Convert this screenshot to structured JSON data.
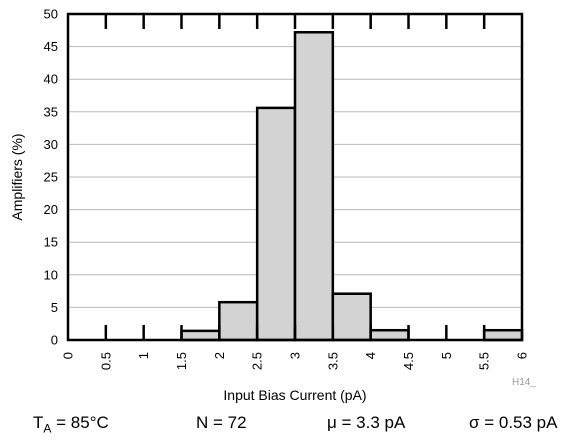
{
  "chart_data": {
    "type": "bar",
    "bin_edges": [
      0,
      0.5,
      1,
      1.5,
      2,
      2.5,
      3,
      3.5,
      4,
      4.5,
      5,
      5.5,
      6
    ],
    "categories": [
      "0-0.5",
      "0.5-1",
      "1-1.5",
      "1.5-2",
      "2-2.5",
      "2.5-3",
      "3-3.5",
      "3.5-4",
      "4-4.5",
      "4.5-5",
      "5-5.5",
      "5.5-6"
    ],
    "values": [
      0,
      0,
      0,
      1.4,
      5.8,
      35.6,
      47.2,
      7.1,
      1.5,
      0,
      0,
      1.5
    ],
    "xlabel": "Input Bias Current (pA)",
    "ylabel": "Amplifiers (%)",
    "x_tick_labels": [
      "0",
      "0.5",
      "1",
      "1.5",
      "2",
      "2.5",
      "3",
      "3.5",
      "4",
      "4.5",
      "5",
      "5.5",
      "6"
    ],
    "y_tick_labels": [
      "0",
      "5",
      "10",
      "15",
      "20",
      "25",
      "30",
      "35",
      "40",
      "45",
      "50"
    ],
    "xlim": [
      0,
      6
    ],
    "ylim": [
      0,
      50
    ],
    "grid": "horizontal",
    "bar_color": "#d3d3d3",
    "edge_color": "#000000"
  },
  "figure_code": "H14_",
  "footer": {
    "temp_label": "T",
    "temp_sub": "A",
    "temp_value": " = 85°C",
    "n": "N = 72",
    "mu": "μ = 3.3 pA",
    "sigma": "σ = 0.53 pA"
  }
}
